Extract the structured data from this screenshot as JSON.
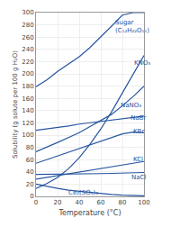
{
  "chart_data": {
    "type": "line",
    "xlabel": "Temperature (°C)",
    "ylabel": "Solubility (g solute per 100 g H₂O)",
    "x": [
      0,
      10,
      20,
      30,
      40,
      50,
      60,
      70,
      80,
      90,
      100
    ],
    "series": [
      {
        "values": [
          179,
          190,
          204,
          216,
          228,
          243,
          260,
          278,
          296,
          300,
          300
        ]
      },
      {
        "values": [
          13,
          21,
          31,
          45,
          63,
          85,
          110,
          138,
          169,
          200,
          230
        ]
      },
      {
        "values": [
          73,
          80,
          88,
          96,
          104,
          114,
          124,
          134,
          148,
          163,
          180
        ]
      },
      {
        "values": [
          108,
          110,
          112,
          115,
          118,
          120,
          122,
          124,
          126,
          128,
          131
        ]
      },
      {
        "values": [
          54,
          60,
          66,
          72,
          78,
          85,
          91,
          97,
          102,
          105,
          104
        ]
      },
      {
        "values": [
          28,
          31,
          34,
          37,
          40,
          43,
          46,
          48,
          51,
          54,
          57
        ]
      },
      {
        "values": [
          35.7,
          35.8,
          35.9,
          36.1,
          36.4,
          36.7,
          37.1,
          37.5,
          38.0,
          38.5,
          39.0
        ]
      },
      {
        "values": [
          20,
          16,
          13,
          10,
          8,
          6,
          4,
          3,
          2,
          1.5,
          1
        ]
      }
    ],
    "color": "#2655a0",
    "xlim": [
      0,
      100
    ],
    "ylim": [
      0,
      300
    ],
    "xticks": [
      0,
      20,
      40,
      60,
      80,
      100
    ],
    "yticks": [
      0,
      20,
      40,
      60,
      80,
      100,
      120,
      140,
      160,
      180,
      200,
      220,
      240,
      260,
      280,
      300
    ],
    "grid": true,
    "annotations": [
      {
        "text": "Sugar\n(C₁₂H₂₂O₁₁)",
        "x": 72,
        "y": 277
      },
      {
        "text": "KNO₃",
        "x": 89,
        "y": 218
      },
      {
        "text": "NaNO₃",
        "x": 77,
        "y": 148
      },
      {
        "text": "NaBr",
        "x": 86,
        "y": 128
      },
      {
        "text": "KBr",
        "x": 88,
        "y": 106
      },
      {
        "text": "KCl",
        "x": 88,
        "y": 60
      },
      {
        "text": "NaCl",
        "x": 87,
        "y": 31
      },
      {
        "text": "Ce₂(SO₄)₃",
        "x": 28,
        "y": 6
      }
    ]
  }
}
